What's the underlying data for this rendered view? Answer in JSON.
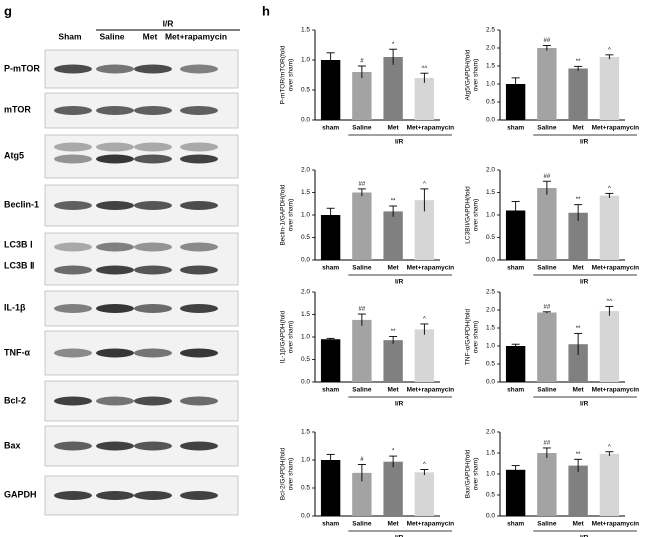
{
  "panel_labels": [
    "g",
    "h"
  ],
  "blot": {
    "lanes": [
      "Sham",
      "Saline",
      "Met",
      "Met+rapamycin"
    ],
    "group_label": "I/R",
    "rows": [
      "P-mTOR",
      "mTOR",
      "Atg5",
      "Beclin-1",
      "LC3B Ⅰ",
      "LC3B Ⅱ",
      "IL-1β",
      "TNF-α",
      "Bcl-2",
      "Bax",
      "GAPDH"
    ]
  },
  "chart_data": [
    {
      "type": "bar",
      "ylabel": [
        "P-mTOR/mTOR(fold",
        "over sham)"
      ],
      "categories": [
        "sham",
        "Saline",
        "Met",
        "Met+rapamycin"
      ],
      "group_label": "I/R",
      "values": [
        1.0,
        0.8,
        1.05,
        0.7
      ],
      "errors": [
        0.12,
        0.1,
        0.13,
        0.08
      ],
      "annotations": [
        null,
        "#",
        "*",
        "^^"
      ],
      "colors": [
        "#000000",
        "#a3a3a3",
        "#808080",
        "#d6d6d6"
      ],
      "ylim": [
        0,
        1.5
      ],
      "yticks": [
        {
          "value": 0,
          "label": "0.0"
        },
        0.5,
        {
          "value": 1,
          "label": "1.0"
        },
        1.5
      ]
    },
    {
      "type": "bar",
      "ylabel": [
        "Atg5/GAPDH(fold",
        "over sham)"
      ],
      "categories": [
        "sham",
        "Saline",
        "Met",
        "Met+rapamycin"
      ],
      "group_label": "I/R",
      "values": [
        1.0,
        2.0,
        1.43,
        1.75
      ],
      "errors": [
        0.17,
        0.07,
        0.06,
        0.06
      ],
      "annotations": [
        null,
        "##",
        "**",
        "^"
      ],
      "colors": [
        "#000000",
        "#a3a3a3",
        "#808080",
        "#d6d6d6"
      ],
      "ylim": [
        0,
        2.5
      ],
      "yticks": [
        {
          "value": 0,
          "label": "0.0"
        },
        0.5,
        {
          "value": 1,
          "label": "1.0"
        },
        1.5,
        {
          "value": 2,
          "label": "2.0"
        },
        2.5
      ]
    },
    {
      "type": "bar",
      "ylabel": [
        "Beclin-1/GAPDH(fold",
        "over sham)"
      ],
      "categories": [
        "sham",
        "Saline",
        "Met",
        "Met+rapamycin"
      ],
      "group_label": "I/R",
      "values": [
        1.0,
        1.5,
        1.08,
        1.33
      ],
      "errors": [
        0.15,
        0.08,
        0.12,
        0.25
      ],
      "annotations": [
        null,
        "##",
        "**",
        "^"
      ],
      "colors": [
        "#000000",
        "#a3a3a3",
        "#808080",
        "#d6d6d6"
      ],
      "ylim": [
        0,
        2
      ],
      "yticks": [
        {
          "value": 0,
          "label": "0.0"
        },
        0.5,
        {
          "value": 1,
          "label": "1.0"
        },
        1.5,
        {
          "value": 2,
          "label": "2.0"
        }
      ]
    },
    {
      "type": "bar",
      "ylabel": [
        "LC3BII/GAPDH(fold",
        "over sham)"
      ],
      "categories": [
        "sham",
        "Saline",
        "Met",
        "Met+rapamycin"
      ],
      "group_label": "I/R",
      "values": [
        1.1,
        1.6,
        1.05,
        1.43
      ],
      "errors": [
        0.2,
        0.15,
        0.18,
        0.05
      ],
      "annotations": [
        null,
        "##",
        "**",
        "^"
      ],
      "colors": [
        "#000000",
        "#a3a3a3",
        "#808080",
        "#d6d6d6"
      ],
      "ylim": [
        0,
        2
      ],
      "yticks": [
        {
          "value": 0,
          "label": "0.0"
        },
        0.5,
        {
          "value": 1,
          "label": "1.0"
        },
        1.5,
        {
          "value": 2,
          "label": "2.0"
        }
      ]
    },
    {
      "type": "bar",
      "ylabel": [
        "IL-1β/GAPDH(fold",
        "over sham)"
      ],
      "categories": [
        "sham",
        "Saline",
        "Met",
        "Met+rapamycin"
      ],
      "group_label": "I/R",
      "values": [
        0.95,
        1.38,
        0.93,
        1.17
      ],
      "errors": [
        0.02,
        0.13,
        0.08,
        0.12
      ],
      "annotations": [
        null,
        "##",
        "**",
        "^"
      ],
      "colors": [
        "#000000",
        "#a3a3a3",
        "#808080",
        "#d6d6d6"
      ],
      "ylim": [
        0,
        2
      ],
      "yticks": [
        {
          "value": 0,
          "label": "0.0"
        },
        0.5,
        {
          "value": 1,
          "label": "1.0"
        },
        1.5,
        {
          "value": 2,
          "label": "2.0"
        }
      ]
    },
    {
      "type": "bar",
      "ylabel": [
        "TNF-α/GAPDH(fold",
        "over sham)"
      ],
      "categories": [
        "sham",
        "Saline",
        "Met",
        "Met+rapamycin"
      ],
      "group_label": "I/R",
      "values": [
        1.0,
        1.93,
        1.05,
        1.97
      ],
      "errors": [
        0.05,
        0.02,
        0.3,
        0.13
      ],
      "annotations": [
        null,
        "##",
        "**",
        "^^"
      ],
      "colors": [
        "#000000",
        "#a3a3a3",
        "#808080",
        "#d6d6d6"
      ],
      "ylim": [
        0,
        2.5
      ],
      "yticks": [
        {
          "value": 0,
          "label": "0.0"
        },
        0.5,
        {
          "value": 1,
          "label": "1.0"
        },
        1.5,
        {
          "value": 2,
          "label": "2.0"
        },
        2.5
      ]
    },
    {
      "type": "bar",
      "ylabel": [
        "Bcl-2/GAPDH(fold",
        "over sham)"
      ],
      "categories": [
        "sham",
        "Saline",
        "Met",
        "Met+rapamycin"
      ],
      "group_label": "I/R",
      "values": [
        1.0,
        0.77,
        0.97,
        0.78
      ],
      "errors": [
        0.1,
        0.15,
        0.1,
        0.05
      ],
      "annotations": [
        null,
        "#",
        "*",
        "^"
      ],
      "colors": [
        "#000000",
        "#a3a3a3",
        "#808080",
        "#d6d6d6"
      ],
      "ylim": [
        0,
        1.5
      ],
      "yticks": [
        {
          "value": 0,
          "label": "0.0"
        },
        0.5,
        {
          "value": 1,
          "label": "1.0"
        },
        1.5
      ]
    },
    {
      "type": "bar",
      "ylabel": [
        "Bax/GAPDH(fold",
        "over sham)"
      ],
      "categories": [
        "sham",
        "Saline",
        "Met",
        "Met+rapamycin"
      ],
      "group_label": "I/R",
      "values": [
        1.1,
        1.5,
        1.2,
        1.48
      ],
      "errors": [
        0.1,
        0.12,
        0.15,
        0.05
      ],
      "annotations": [
        null,
        "##",
        "**",
        "^"
      ],
      "colors": [
        "#000000",
        "#a3a3a3",
        "#808080",
        "#d6d6d6"
      ],
      "ylim": [
        0,
        2
      ],
      "yticks": [
        {
          "value": 0,
          "label": "0.0"
        },
        0.5,
        {
          "value": 1,
          "label": "1.0"
        },
        1.5,
        {
          "value": 2,
          "label": "2.0"
        }
      ]
    }
  ]
}
